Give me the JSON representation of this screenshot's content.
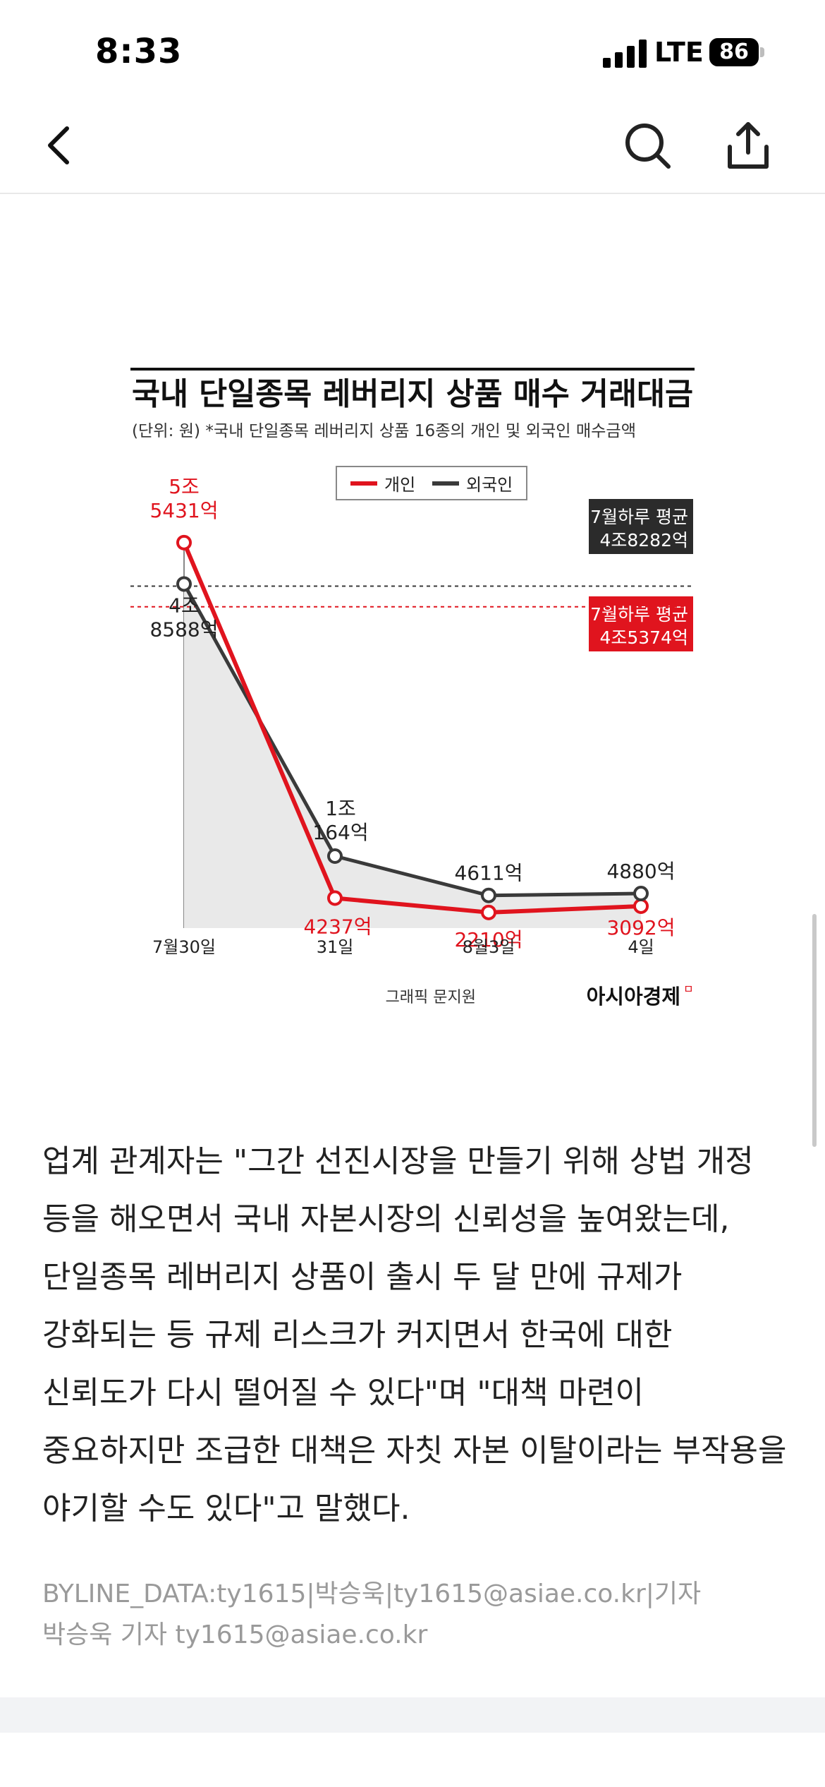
{
  "status_bar": {
    "time": "8:33",
    "network": "LTE",
    "battery": "86"
  },
  "nav": {
    "back_icon": "chevron-left-icon",
    "search_icon": "search-icon",
    "share_icon": "share-icon"
  },
  "chart_data": {
    "type": "line",
    "title": "국내 단일종목 레버리지 상품 매수 거래대금",
    "subtitle": "(단위: 원) *국내 단일종목 레버리지 상품 16종의 개인 및 외국인 매수금액",
    "categories": [
      "7월30일",
      "31일",
      "8월3일",
      "4일"
    ],
    "series": [
      {
        "name": "개인",
        "color": "#e0141e",
        "values": [
          54431,
          4237,
          2210,
          3092
        ],
        "labels": [
          "5조\n5431억",
          "4237억",
          "2210억",
          "3092억"
        ]
      },
      {
        "name": "외국인",
        "color": "#3a3a3a",
        "values": [
          48588,
          10164,
          4611,
          4880
        ],
        "labels": [
          "4조\n8588억",
          "1조\n164억",
          "4611억",
          "4880억"
        ]
      }
    ],
    "unit": "억원",
    "ylim": [
      0,
      58000
    ],
    "references": [
      {
        "label_line1": "7월하루 평균",
        "label_line2": "4조8282억",
        "value": 48282,
        "color": "#3a3a3a"
      },
      {
        "label_line1": "7월하루 평균",
        "label_line2": "4조5374억",
        "value": 45374,
        "color": "#e0141e"
      }
    ],
    "legend_placement": "top-center",
    "grid": false
  },
  "credit": {
    "text": "그래픽 문지원",
    "brand": "아시아경제"
  },
  "article": {
    "paragraph": "업계 관계자는 \"그간 선진시장을 만들기 위해 상법 개정 등을 해오면서 국내 자본시장의 신뢰성을 높여왔는데, 단일종목 레버리지 상품이 출시 두 달 만에 규제가 강화되는 등 규제 리스크가 커지면서 한국에 대한 신뢰도가 다시 떨어질 수 있다\"며 \"대책 마련이 중요하지만 조급한 대책은 자칫 자본 이탈이라는 부작용을 야기할 수도 있다\"고 말했다."
  },
  "byline": {
    "data": "BYLINE_DATA:ty1615|박승욱|ty1615@asiae.co.kr|기자",
    "text": "박승욱 기자 ty1615@asiae.co.kr"
  }
}
